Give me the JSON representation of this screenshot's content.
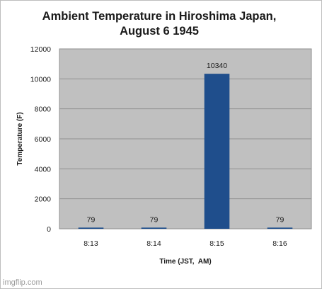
{
  "chart_data": {
    "type": "bar",
    "title": [
      "Ambient Temperature in Hiroshima Japan,",
      "August 6 1945"
    ],
    "xlabel": "Time (JST,  AM)",
    "ylabel": "Temperature (F)",
    "categories": [
      "8:13",
      "8:14",
      "8:15",
      "8:16"
    ],
    "values": [
      79,
      79,
      10340,
      79
    ],
    "data_labels": [
      "79",
      "79",
      "10340",
      "79"
    ],
    "ylim": [
      0,
      12000
    ],
    "yticks": [
      0,
      2000,
      4000,
      6000,
      8000,
      10000,
      12000
    ],
    "grid": true,
    "legend": "none",
    "colors": {
      "bar": "#1f4e8c",
      "plot_background": "#c0c0c0",
      "grid": "#8f8f8f"
    }
  },
  "watermark": "imgflip.com"
}
